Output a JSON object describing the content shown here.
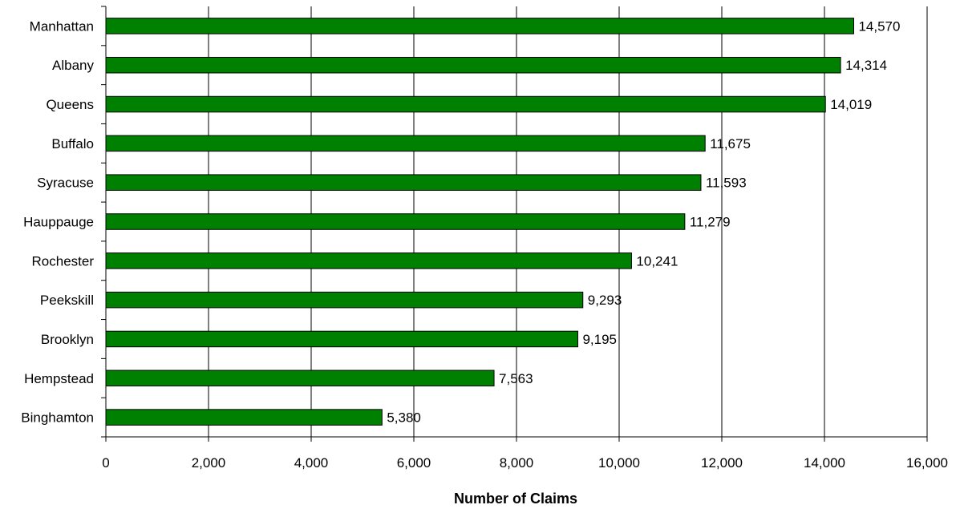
{
  "chart_data": {
    "type": "bar",
    "orientation": "horizontal",
    "title": "",
    "xlabel": "Number of Claims",
    "ylabel": "",
    "xlim": [
      0,
      16000
    ],
    "x_ticks": [
      0,
      2000,
      4000,
      6000,
      8000,
      10000,
      12000,
      14000,
      16000
    ],
    "x_tick_labels": [
      "0",
      "2,000",
      "4,000",
      "6,000",
      "8,000",
      "10,000",
      "12,000",
      "14,000",
      "16,000"
    ],
    "grid": "vertical",
    "legend": "none",
    "bar_color": "#008000",
    "categories": [
      "Manhattan",
      "Albany",
      "Queens",
      "Buffalo",
      "Syracuse",
      "Hauppauge",
      "Rochester",
      "Peekskill",
      "Brooklyn",
      "Hempstead",
      "Binghamton"
    ],
    "values": [
      14570,
      14314,
      14019,
      11675,
      11593,
      11279,
      10241,
      9293,
      9195,
      7563,
      5380
    ],
    "value_labels": [
      "14,570",
      "14,314",
      "14,019",
      "11,675",
      "11,593",
      "11,279",
      "10,241",
      "9,293",
      "9,195",
      "7,563",
      "5,380"
    ]
  }
}
